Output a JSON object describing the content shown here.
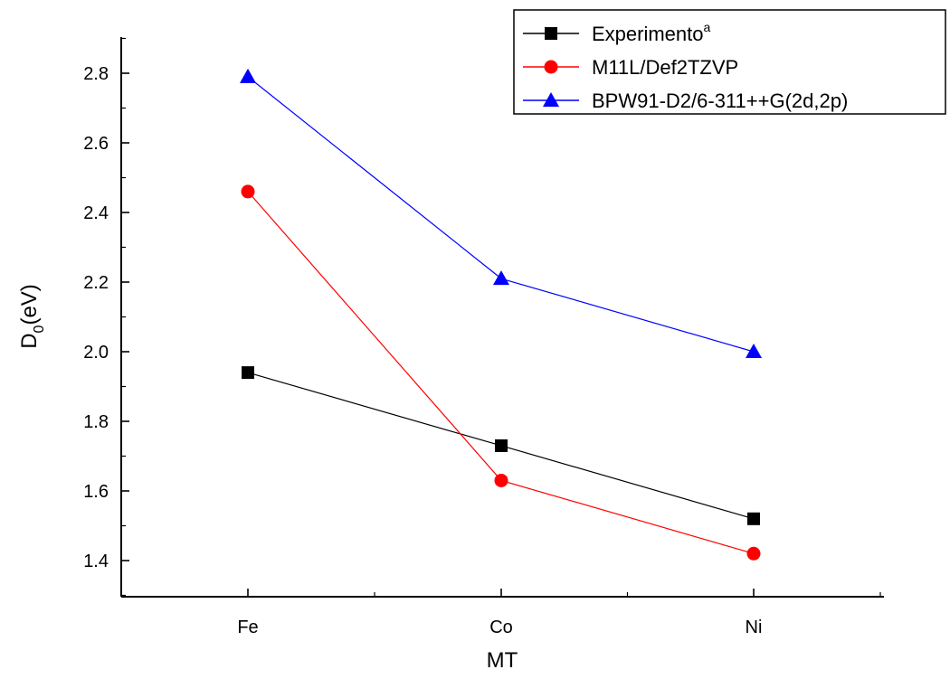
{
  "chart_data": {
    "type": "line",
    "xlabel": "MT",
    "ylabel": {
      "main": "D",
      "sub": "0",
      "rest": "(eV)"
    },
    "categories": [
      "Fe",
      "Co",
      "Ni"
    ],
    "ylim": [
      1.28,
      2.92
    ],
    "yticks": [
      "1.4",
      "1.6",
      "1.8",
      "2.0",
      "2.2",
      "2.4",
      "2.6",
      "2.8"
    ],
    "grid": false,
    "legend_position": "top-right",
    "series": [
      {
        "name": "Experimento",
        "name_sup": "a",
        "values": [
          1.94,
          1.73,
          1.52
        ],
        "color": "#000000",
        "marker": "square"
      },
      {
        "name": "M11L/Def2TZVP",
        "name_sup": "",
        "values": [
          2.46,
          1.63,
          1.42
        ],
        "color": "#ff0000",
        "marker": "circle"
      },
      {
        "name": "BPW91-D2/6-311++G(2d,2p)",
        "name_sup": "",
        "values": [
          2.79,
          2.21,
          2.0
        ],
        "color": "#0000ff",
        "marker": "triangle"
      }
    ]
  }
}
